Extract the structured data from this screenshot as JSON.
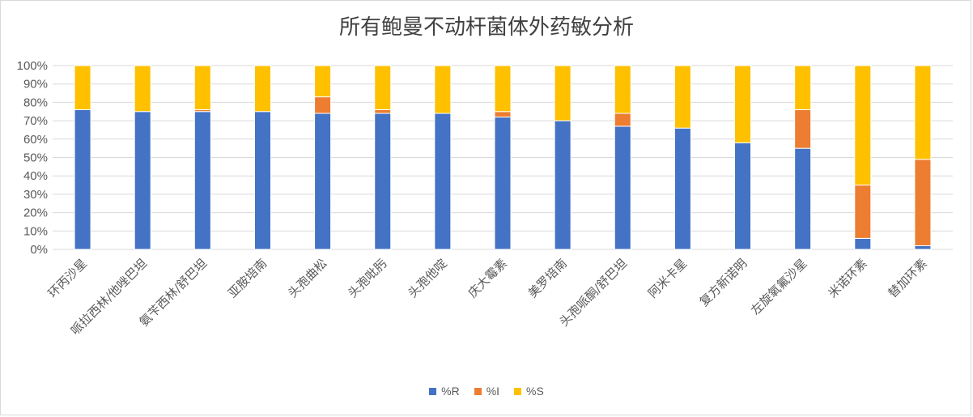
{
  "chart_data": {
    "type": "bar",
    "stacked": true,
    "title": "所有鲍曼不动杆菌体外药敏分析",
    "categories": [
      "环丙沙星",
      "哌拉西林/他唑巴坦",
      "氨苄西林/舒巴坦",
      "亚胺培南",
      "头孢曲松",
      "头孢吡肟",
      "头孢他啶",
      "庆大霉素",
      "美罗培南",
      "头孢哌酮/舒巴坦",
      "阿米卡星",
      "复方新诺明",
      "左旋氧氟沙星",
      "米诺环素",
      "替加环素"
    ],
    "series": [
      {
        "name": "%R",
        "color": "#4472C4",
        "values": [
          76,
          75,
          75,
          75,
          74,
          74,
          74,
          72,
          70,
          67,
          66,
          58,
          55,
          6,
          2
        ]
      },
      {
        "name": "%I",
        "color": "#ED7D31",
        "values": [
          0,
          0,
          1,
          0,
          9,
          2,
          0,
          3,
          0,
          7,
          0,
          0,
          21,
          29,
          47
        ]
      },
      {
        "name": "%S",
        "color": "#FFC000",
        "values": [
          24,
          25,
          24,
          25,
          17,
          24,
          26,
          25,
          30,
          26,
          34,
          42,
          24,
          65,
          51
        ]
      }
    ],
    "yticks": [
      "0%",
      "10%",
      "20%",
      "30%",
      "40%",
      "50%",
      "60%",
      "70%",
      "80%",
      "90%",
      "100%"
    ],
    "ylim": [
      0,
      100
    ],
    "grid": true,
    "legend_position": "bottom"
  }
}
